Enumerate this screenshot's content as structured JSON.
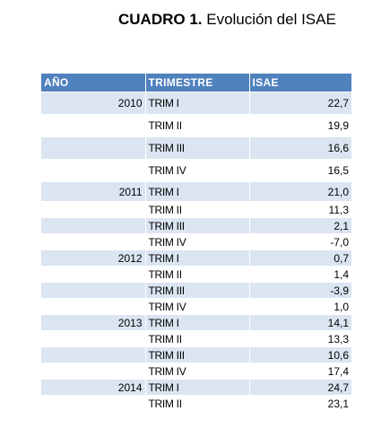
{
  "title": {
    "bold": "CUADRO 1.",
    "rest": " Evolución del ISAE"
  },
  "table": {
    "headers": [
      "AÑO",
      "TRIMESTRE",
      "ISAE"
    ],
    "rows": [
      {
        "year": "2010",
        "trim": "TRIM I",
        "isae": "22,7"
      },
      {
        "year": "",
        "trim": "TRIM II",
        "isae": "19,9"
      },
      {
        "year": "",
        "trim": "TRIM III",
        "isae": "16,6"
      },
      {
        "year": "",
        "trim": "TRIM IV",
        "isae": "16,5"
      },
      {
        "year": "2011",
        "trim": "TRIM I",
        "isae": "21,0"
      },
      {
        "year": "",
        "trim": "TRIM II",
        "isae": "11,3"
      },
      {
        "year": "",
        "trim": "TRIM III",
        "isae": "2,1"
      },
      {
        "year": "",
        "trim": "TRIM IV",
        "isae": "-7,0"
      },
      {
        "year": "2012",
        "trim": "TRIM I",
        "isae": "0,7"
      },
      {
        "year": "",
        "trim": "TRIM II",
        "isae": "1,4"
      },
      {
        "year": "",
        "trim": "TRIM III",
        "isae": "-3,9"
      },
      {
        "year": "",
        "trim": "TRIM IV",
        "isae": "1,0"
      },
      {
        "year": "2013",
        "trim": "TRIM I",
        "isae": "14,1"
      },
      {
        "year": "",
        "trim": "TRIM II",
        "isae": "13,3"
      },
      {
        "year": "",
        "trim": "TRIM III",
        "isae": "10,6"
      },
      {
        "year": "",
        "trim": "TRIM IV",
        "isae": "17,4"
      },
      {
        "year": "2014",
        "trim": "TRIM I",
        "isae": "24,7"
      },
      {
        "year": "",
        "trim": "TRIM II",
        "isae": "23,1"
      }
    ]
  },
  "colors": {
    "header_bg": "#4f81bd",
    "header_text": "#ffffff",
    "band_bg": "#dbe5f1",
    "plain_bg": "#ffffff"
  }
}
